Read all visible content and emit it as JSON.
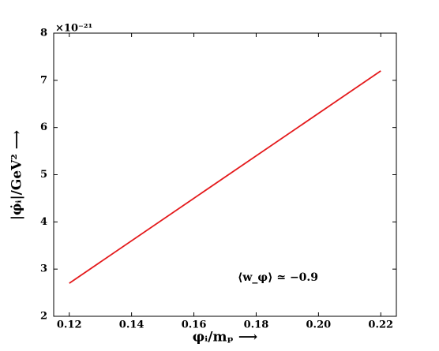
{
  "chart_data": {
    "type": "line",
    "x_label": "φᵢ/mₚ ⟶",
    "y_label": "|φ̇ᵢ|/GeV² ⟶",
    "y_offset_label": "×10⁻²¹",
    "annotation": "⟨w_φ⟩ ≃ −0.9",
    "x": [
      0.12,
      0.22
    ],
    "series": [
      {
        "color": "#e41a1c",
        "values": [
          2.7,
          7.2
        ]
      }
    ],
    "xlim": [
      0.115,
      0.225
    ],
    "ylim": [
      2,
      8
    ],
    "xticks": [
      0.12,
      0.14,
      0.16,
      0.18,
      {
        "value": 0.2,
        "label": "0.20"
      },
      0.22
    ],
    "yticks": [
      2,
      3,
      4,
      5,
      6,
      7,
      8
    ]
  }
}
